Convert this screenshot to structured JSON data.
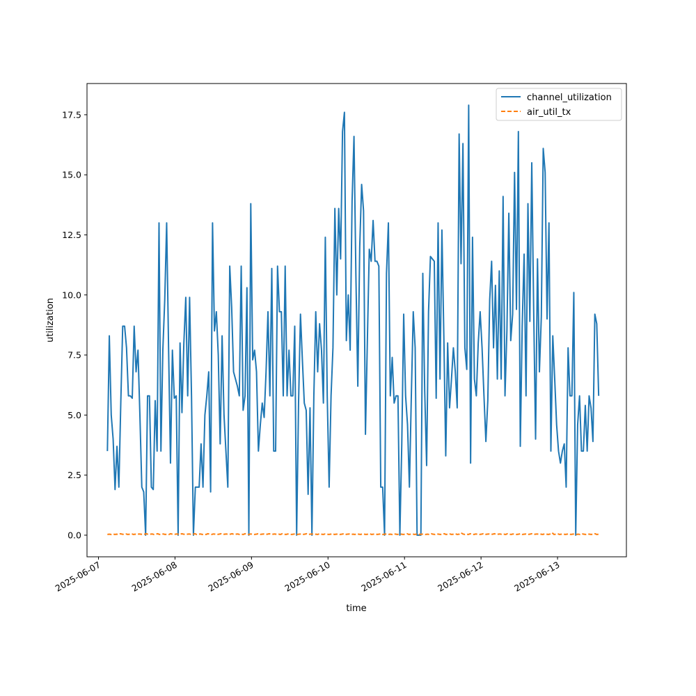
{
  "chart_data": {
    "type": "line",
    "title": "",
    "xlabel": "time",
    "ylabel": "utilization",
    "x_ticks": [
      "2025-06-07",
      "2025-06-08",
      "2025-06-09",
      "2025-06-10",
      "2025-06-11",
      "2025-06-12",
      "2025-06-13"
    ],
    "y_ticks": [
      "0.0",
      "2.5",
      "5.0",
      "7.5",
      "10.0",
      "12.5",
      "15.0",
      "17.5"
    ],
    "xlim": [
      "2025-06-06T20:24",
      "2025-06-13T21:36"
    ],
    "ylim": [
      -0.9,
      18.8
    ],
    "grid": false,
    "legend_position": "top-right",
    "x_start": "2025-06-07T02:48",
    "x_end": "2025-06-13T12:54",
    "series": [
      {
        "name": "channel_utilization",
        "color": "#1f77b4",
        "style": "solid",
        "values": [
          3.5,
          8.3,
          5.0,
          4.0,
          1.9,
          3.7,
          2.0,
          5.5,
          8.7,
          8.7,
          7.8,
          5.8,
          5.8,
          5.7,
          8.7,
          6.8,
          7.7,
          5.0,
          2.0,
          1.8,
          0.0,
          5.8,
          5.8,
          2.0,
          1.9,
          5.6,
          3.5,
          13.0,
          3.5,
          7.7,
          9.8,
          13.0,
          7.8,
          3.0,
          7.7,
          5.7,
          5.8,
          0.0,
          8.0,
          5.1,
          8.0,
          9.9,
          5.8,
          9.9,
          5.8,
          0.0,
          2.0,
          2.0,
          2.0,
          3.8,
          2.0,
          5.0,
          5.8,
          6.8,
          1.8,
          13.0,
          8.5,
          9.3,
          7.5,
          3.8,
          8.3,
          5.0,
          3.5,
          2.0,
          11.2,
          9.5,
          6.8,
          6.5,
          6.2,
          5.8,
          11.2,
          5.2,
          5.8,
          10.3,
          0.0,
          13.8,
          7.3,
          7.7,
          6.8,
          3.5,
          4.6,
          5.5,
          4.9,
          6.8,
          9.3,
          5.8,
          11.1,
          3.5,
          3.5,
          11.2,
          9.3,
          9.3,
          5.8,
          11.2,
          5.8,
          7.7,
          5.8,
          5.8,
          8.7,
          0.0,
          5.5,
          9.2,
          7.3,
          5.5,
          5.2,
          1.7,
          5.3,
          0.0,
          5.8,
          9.3,
          6.8,
          8.8,
          7.7,
          5.5,
          12.4,
          5.8,
          2.0,
          5.8,
          7.8,
          13.6,
          10.0,
          13.6,
          11.5,
          16.8,
          17.6,
          8.1,
          10.0,
          7.7,
          13.9,
          16.6,
          10.8,
          6.2,
          12.0,
          14.6,
          13.5,
          4.2,
          8.1,
          11.9,
          11.4,
          13.1,
          11.4,
          11.4,
          11.2,
          2.0,
          2.0,
          0.0,
          10.9,
          13.0,
          5.8,
          7.4,
          5.5,
          5.8,
          5.8,
          0.0,
          3.8,
          9.2,
          5.8,
          4.6,
          2.0,
          5.8,
          9.3,
          7.8,
          0.0,
          0.0,
          0.0,
          10.9,
          6.0,
          2.9,
          9.3,
          11.6,
          11.5,
          11.4,
          5.7,
          13.0,
          6.5,
          12.7,
          8.3,
          3.3,
          8.0,
          5.3,
          6.5,
          7.8,
          6.8,
          5.3,
          16.7,
          11.3,
          16.3,
          7.8,
          6.9,
          17.9,
          3.0,
          12.4,
          6.5,
          5.8,
          8.0,
          9.3,
          7.8,
          5.8,
          3.9,
          5.6,
          9.8,
          11.4,
          7.8,
          10.4,
          6.5,
          11.0,
          6.5,
          14.1,
          5.8,
          8.5,
          13.4,
          8.1,
          9.2,
          15.1,
          9.4,
          16.8,
          3.7,
          8.7,
          11.7,
          5.8,
          13.8,
          8.9,
          15.5,
          9.4,
          4.0,
          11.5,
          6.8,
          9.1,
          16.1,
          15.1,
          9.0,
          13.0,
          3.5,
          8.3,
          6.5,
          4.6,
          3.5,
          3.0,
          3.5,
          3.8,
          2.0,
          7.8,
          5.8,
          5.8,
          10.1,
          0.0,
          4.6,
          5.8,
          3.5,
          3.5,
          5.4,
          3.5,
          5.8,
          5.3,
          3.9,
          9.2,
          8.8,
          5.8
        ]
      },
      {
        "name": "air_util_tx",
        "color": "#ff7f0e",
        "style": "dashed",
        "values": [
          0.03,
          0.04,
          0.03,
          0.05,
          0.03,
          0.04,
          0.03,
          0.06,
          0.04,
          0.03,
          0.05,
          0.03,
          0.04,
          0.06,
          0.03,
          0.04,
          0.03,
          0.05,
          0.04,
          0.03,
          0.04,
          0.06,
          0.03,
          0.04,
          0.05,
          0.03,
          0.04,
          0.06,
          0.03,
          0.04,
          0.05,
          0.03,
          0.04,
          0.03,
          0.06,
          0.04,
          0.03,
          0.05,
          0.04,
          0.03,
          0.06,
          0.04,
          0.03,
          0.04,
          0.05,
          0.03,
          0.04,
          0.06,
          0.03,
          0.04,
          0.05,
          0.03,
          0.04,
          0.03,
          0.06,
          0.04,
          0.03,
          0.05,
          0.04,
          0.03,
          0.04,
          0.06,
          0.03,
          0.04,
          0.05,
          0.03,
          0.04,
          0.06,
          0.03,
          0.04,
          0.05,
          0.03,
          0.04,
          0.03,
          0.06,
          0.04,
          0.03,
          0.05,
          0.04,
          0.03,
          0.04,
          0.06,
          0.03,
          0.04,
          0.05,
          0.03,
          0.04,
          0.06,
          0.03,
          0.04,
          0.05,
          0.03,
          0.04,
          0.03,
          0.06,
          0.04,
          0.03,
          0.05,
          0.04,
          0.03,
          0.04,
          0.06,
          0.03,
          0.04,
          0.05,
          0.03,
          0.04,
          0.06,
          0.03,
          0.04,
          0.05,
          0.03,
          0.04,
          0.03,
          0.06,
          0.04,
          0.03,
          0.05,
          0.04,
          0.03,
          0.04,
          0.06,
          0.03,
          0.04,
          0.05,
          0.03,
          0.04,
          0.06,
          0.03,
          0.04,
          0.05,
          0.03,
          0.04,
          0.03,
          0.06,
          0.04,
          0.03,
          0.05,
          0.04,
          0.03,
          0.04,
          0.06,
          0.03,
          0.04,
          0.05,
          0.03,
          0.04,
          0.06,
          0.03,
          0.04,
          0.05,
          0.03,
          0.04,
          0.03,
          0.06,
          0.04,
          0.03,
          0.05,
          0.04,
          0.03,
          0.04,
          0.06,
          0.03,
          0.04,
          0.05,
          0.03,
          0.04,
          0.06,
          0.03,
          0.04,
          0.05,
          0.03,
          0.04,
          0.03,
          0.06,
          0.04,
          0.03,
          0.05,
          0.04,
          0.03,
          0.04,
          0.06,
          0.03,
          0.04,
          0.05,
          0.03,
          0.04,
          0.06,
          0.03,
          0.04,
          0.1,
          0.05,
          0.03,
          0.04,
          0.03,
          0.06,
          0.04,
          0.03,
          0.05,
          0.04,
          0.03,
          0.04,
          0.06,
          0.03,
          0.04,
          0.05,
          0.03,
          0.04,
          0.06,
          0.03,
          0.04,
          0.05,
          0.03,
          0.04,
          0.03,
          0.06,
          0.04,
          0.03,
          0.05,
          0.04,
          0.03,
          0.04,
          0.06,
          0.03,
          0.04,
          0.05,
          0.03,
          0.04,
          0.06,
          0.03,
          0.04,
          0.05,
          0.03,
          0.04,
          0.03,
          0.06,
          0.04,
          0.03,
          0.05,
          0.1,
          0.03,
          0.04,
          0.06,
          0.03,
          0.04,
          0.05,
          0.03,
          0.04,
          0.06,
          0.03,
          0.04,
          0.05,
          0.03,
          0.04,
          0.03,
          0.06,
          0.04,
          0.03,
          0.05,
          0.04,
          0.03,
          0.04,
          0.06,
          0.03,
          0.04
        ]
      }
    ]
  }
}
